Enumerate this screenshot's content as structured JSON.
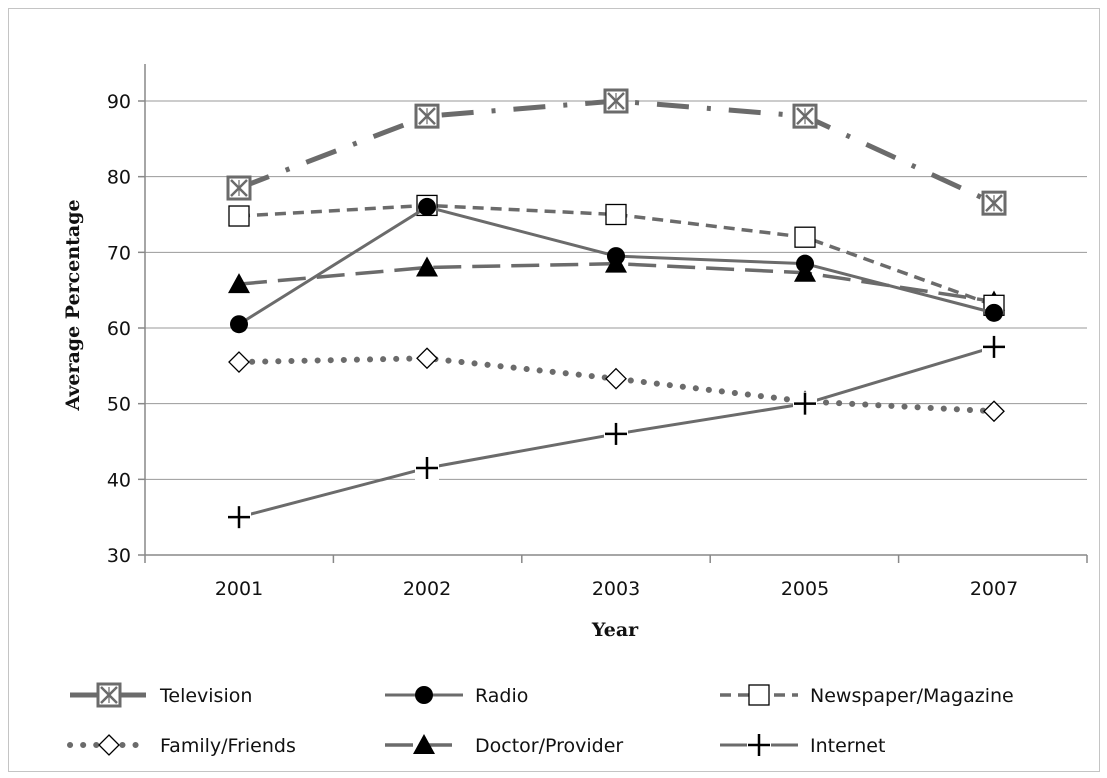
{
  "chart_data": {
    "type": "line",
    "title": "",
    "xlabel": "Year",
    "ylabel": "Average Percentage",
    "categories": [
      "2001",
      "2002",
      "2003",
      "2005",
      "2007"
    ],
    "ylim": [
      30,
      90
    ],
    "yticks": [
      30,
      40,
      50,
      60,
      70,
      80,
      90
    ],
    "grid": true,
    "legend_position": "bottom",
    "series": [
      {
        "name": "Television",
        "values": [
          78.5,
          88,
          90,
          88,
          76.5
        ],
        "color": "#6b6b6b",
        "line": "dashdot",
        "marker": "boxed-x"
      },
      {
        "name": "Radio",
        "values": [
          60.5,
          76,
          69.5,
          68.5,
          62
        ],
        "color": "#6b6b6b",
        "line": "solid",
        "marker": "filled-circle"
      },
      {
        "name": "Newspaper/Magazine",
        "values": [
          74.8,
          76.2,
          75,
          72,
          63
        ],
        "color": "#6b6b6b",
        "line": "dashed",
        "marker": "open-square"
      },
      {
        "name": "Family/Friends",
        "values": [
          55.5,
          56,
          53.3,
          50.3,
          49
        ],
        "color": "#6b6b6b",
        "line": "dotted",
        "marker": "open-diamond"
      },
      {
        "name": "Doctor/Provider",
        "values": [
          65.8,
          68,
          68.5,
          67.3,
          63.5
        ],
        "color": "#6b6b6b",
        "line": "longdash",
        "marker": "filled-triangle"
      },
      {
        "name": "Internet",
        "values": [
          35,
          41.5,
          46,
          50,
          57.5
        ],
        "color": "#6b6b6b",
        "line": "solid",
        "marker": "plus"
      }
    ]
  }
}
